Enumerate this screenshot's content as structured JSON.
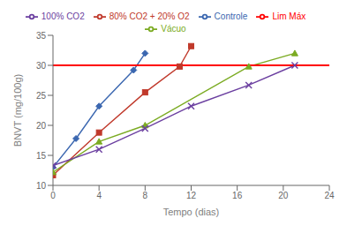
{
  "chart_data": {
    "type": "line",
    "xlabel": "Tempo (dias)",
    "ylabel": "BNVT (mg/100g)",
    "xlim": [
      0,
      24
    ],
    "ylim": [
      10,
      35
    ],
    "xticks": [
      0,
      4,
      8,
      12,
      16,
      20,
      24
    ],
    "yticks": [
      10,
      15,
      20,
      25,
      30,
      35
    ],
    "grid": false,
    "legend": "top",
    "series": [
      {
        "name": "Controle",
        "color": "#3B67B0",
        "marker": "diamond",
        "x": [
          0,
          2,
          4,
          7,
          8
        ],
        "values": [
          13.0,
          17.8,
          23.2,
          29.2,
          32.0
        ]
      },
      {
        "name": "80% CO2 + 20% O2",
        "color": "#C0392B",
        "marker": "square",
        "x": [
          0,
          4,
          8,
          11,
          12
        ],
        "values": [
          11.7,
          18.8,
          25.5,
          29.8,
          33.2
        ]
      },
      {
        "name": "Vácuo",
        "color": "#7BAB22",
        "marker": "triangle",
        "x": [
          0,
          4,
          8,
          17,
          21
        ],
        "values": [
          12.2,
          17.3,
          20.0,
          29.8,
          32.0
        ]
      },
      {
        "name": "100% CO2",
        "color": "#6B3FA0",
        "marker": "x",
        "x": [
          0,
          4,
          8,
          12,
          17,
          21
        ],
        "values": [
          13.3,
          16.0,
          19.5,
          23.2,
          26.7,
          30.0
        ]
      },
      {
        "name": "Lim Máx",
        "type": "hline",
        "color": "#FF0000",
        "values": [
          30.0
        ]
      }
    ]
  }
}
